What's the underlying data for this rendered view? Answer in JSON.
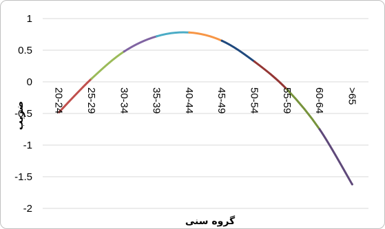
{
  "chart_data": {
    "type": "line",
    "title": "",
    "xlabel": "گروه سنی",
    "ylabel": "ضریب",
    "categories": [
      "20-24",
      "25-29",
      "30-34",
      "35-39",
      "40-44",
      "45-49",
      "50-54",
      "55-59",
      "60-64",
      ">65"
    ],
    "values": [
      -0.48,
      0.05,
      0.48,
      0.72,
      0.78,
      0.65,
      0.32,
      -0.12,
      -0.75,
      -1.62
    ],
    "segment_colors": [
      "#c0504d",
      "#9bbb59",
      "#8064a2",
      "#4bacc6",
      "#f79646",
      "#1f497d",
      "#943634",
      "#77933c",
      "#5f497a"
    ],
    "ylim": [
      -2,
      1
    ],
    "yticks": [
      "1",
      "0.5",
      "0",
      "-0.5",
      "-1",
      "-1.5",
      "-2"
    ],
    "ytick_values": [
      1,
      0.5,
      0,
      -0.5,
      -1,
      -1.5,
      -2
    ],
    "grid": true,
    "legend": "none"
  }
}
